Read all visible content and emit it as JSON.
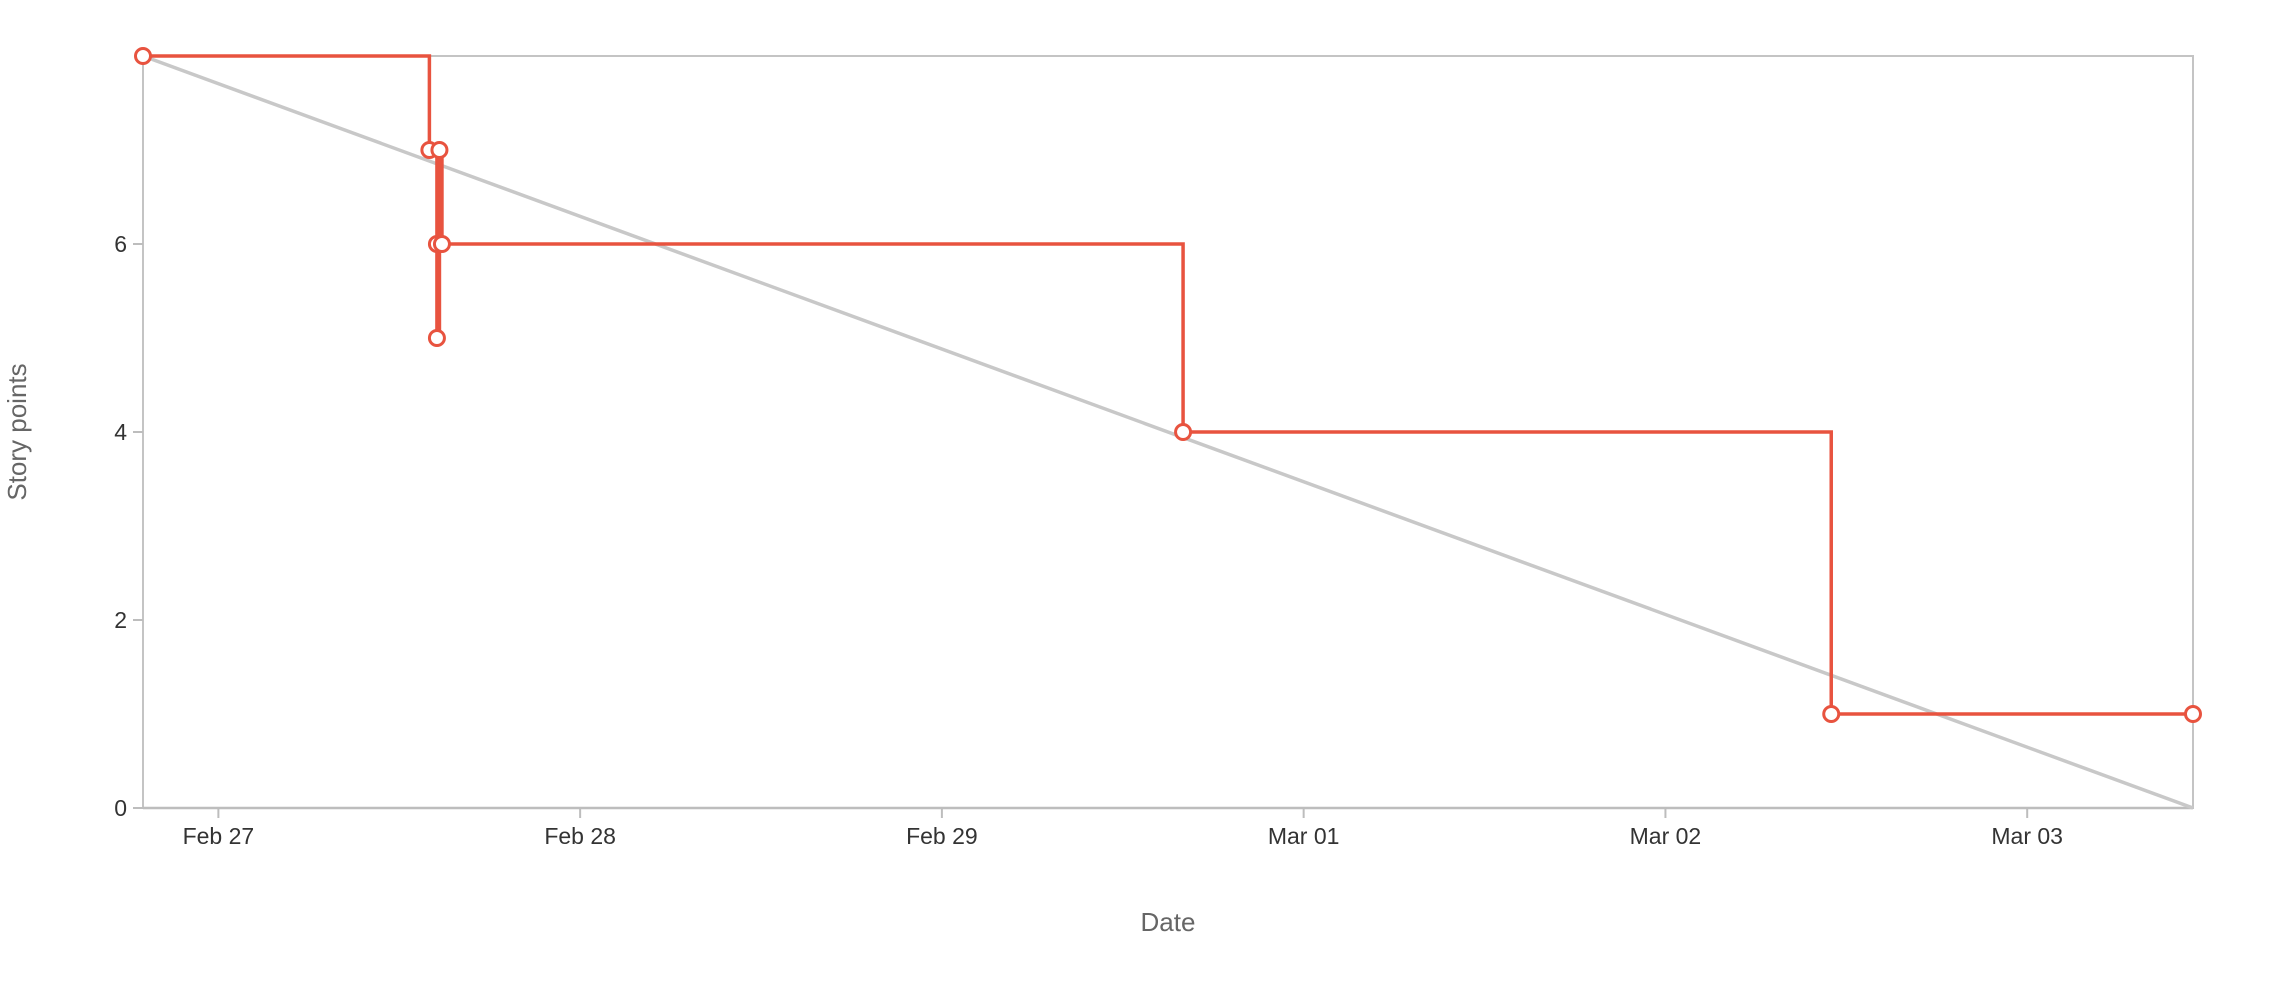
{
  "chart_data": {
    "type": "line",
    "xlabel": "Date",
    "ylabel": "Story points",
    "x_ticks": [
      "Feb 27",
      "Feb 28",
      "Feb 29",
      "Mar 01",
      "Mar 02",
      "Mar 03"
    ],
    "y_ticks": [
      "0",
      "2",
      "4",
      "6"
    ],
    "xlim": [
      "2024-02-26T19:00",
      "2024-03-03T11:00"
    ],
    "ylim": [
      0,
      8
    ],
    "grid": false,
    "series": [
      {
        "role": "actual",
        "color": "#e8533f",
        "step": true,
        "points": [
          {
            "x": "2024-02-26T19:00",
            "y": 8
          },
          {
            "x": "2024-02-27T14:00",
            "y": 7
          },
          {
            "x": "2024-02-27T14:30",
            "y": 6
          },
          {
            "x": "2024-02-27T14:30",
            "y": 5
          },
          {
            "x": "2024-02-27T14:40",
            "y": 7
          },
          {
            "x": "2024-02-27T14:50",
            "y": 6
          },
          {
            "x": "2024-02-29T16:00",
            "y": 4
          },
          {
            "x": "2024-03-02T11:00",
            "y": 1
          },
          {
            "x": "2024-03-03T11:00",
            "y": 1
          }
        ]
      },
      {
        "role": "ideal",
        "color": "#c8c8c8",
        "step": false,
        "points": [
          {
            "x": "2024-02-26T19:00",
            "y": 8
          },
          {
            "x": "2024-03-03T11:00",
            "y": 0
          }
        ]
      }
    ]
  }
}
